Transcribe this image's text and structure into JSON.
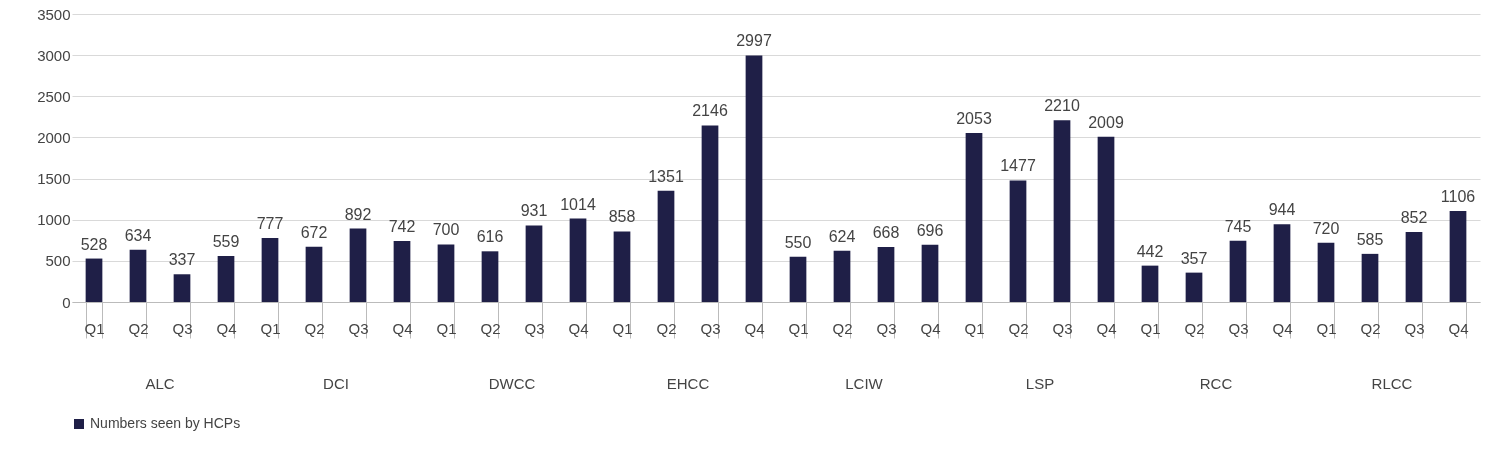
{
  "chart_data": {
    "type": "bar",
    "categories": [
      "Q1",
      "Q2",
      "Q3",
      "Q4",
      "Q1",
      "Q2",
      "Q3",
      "Q4",
      "Q1",
      "Q2",
      "Q3",
      "Q4",
      "Q1",
      "Q2",
      "Q3",
      "Q4",
      "Q1",
      "Q2",
      "Q3",
      "Q4",
      "Q1",
      "Q2",
      "Q3",
      "Q4",
      "Q1",
      "Q2",
      "Q3",
      "Q4",
      "Q1",
      "Q2",
      "Q3",
      "Q4"
    ],
    "annotations": [
      "ALC",
      "DCI",
      "DWCC",
      "EHCC",
      "LCIW",
      "LSP",
      "RCC",
      "RLCC"
    ],
    "series": [
      {
        "name": "Numbers seen by HCPs",
        "color": "#1f1f47",
        "values": [
          528,
          634,
          337,
          559,
          777,
          672,
          892,
          742,
          700,
          616,
          931,
          1014,
          858,
          1351,
          2146,
          2997,
          550,
          624,
          668,
          696,
          2053,
          1477,
          2210,
          2009,
          442,
          357,
          745,
          944,
          720,
          585,
          852,
          1106
        ]
      }
    ],
    "ylim": [
      0,
      3500
    ],
    "yticks": [
      0,
      500,
      1000,
      1500,
      2000,
      2500,
      3000,
      3500
    ],
    "grid": "y",
    "legend": "bottom",
    "data_labels": true
  }
}
